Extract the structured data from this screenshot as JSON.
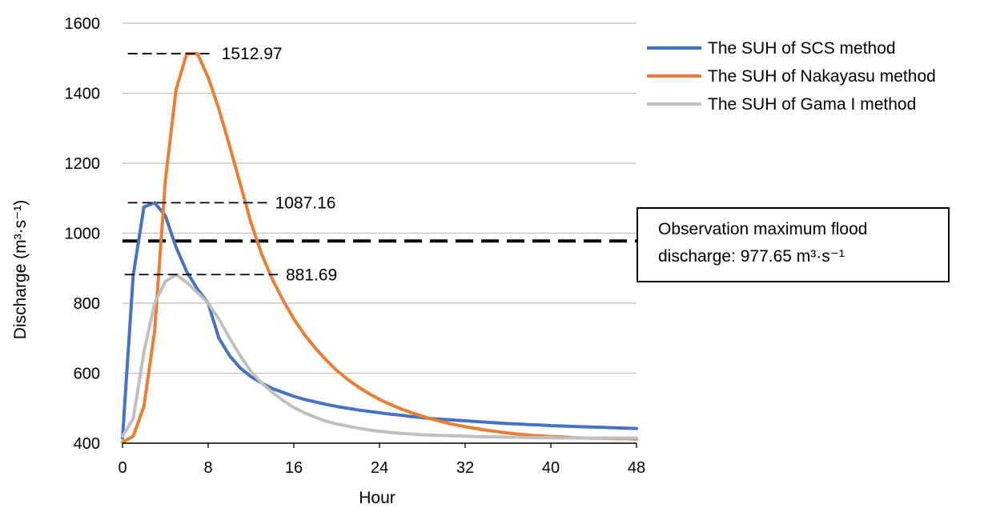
{
  "chart_data": {
    "type": "line",
    "xlabel": "Hour",
    "ylabel": "Discharge (m³·s⁻¹)",
    "xlim": [
      0,
      48
    ],
    "ylim": [
      400,
      1600
    ],
    "xticks": [
      0,
      8,
      16,
      24,
      32,
      40,
      48
    ],
    "yticks": [
      400,
      600,
      800,
      1000,
      1200,
      1400,
      1600
    ],
    "grid": "horizontal",
    "legend_position": "right",
    "series": [
      {
        "name": "The SUH of SCS method",
        "color": "#4472C4",
        "x": [
          0,
          1,
          2,
          3,
          4,
          5,
          6,
          7,
          8,
          9,
          10,
          11,
          12,
          13,
          14,
          15,
          16,
          17,
          18,
          19,
          20,
          21,
          22,
          23,
          24,
          25,
          26,
          27,
          28,
          29,
          30,
          31,
          32,
          33,
          34,
          35,
          36,
          37,
          38,
          39,
          40,
          41,
          42,
          43,
          44,
          45,
          46,
          47,
          48
        ],
        "y": [
          415,
          880,
          1075,
          1087,
          1050,
          960,
          890,
          840,
          800,
          700,
          650,
          615,
          590,
          572,
          556,
          545,
          534,
          525,
          518,
          511,
          505,
          500,
          495,
          491,
          487,
          483,
          480,
          476,
          473,
          470,
          468,
          466,
          464,
          462,
          460,
          458,
          456,
          455,
          453,
          452,
          450,
          449,
          448,
          447,
          446,
          445,
          444,
          443,
          442
        ]
      },
      {
        "name": "The SUH of Nakayasu method",
        "color": "#ED7D31",
        "x": [
          0,
          1,
          2,
          3,
          4,
          5,
          6,
          7,
          8,
          9,
          10,
          11,
          12,
          13,
          14,
          15,
          16,
          17,
          18,
          19,
          20,
          21,
          22,
          23,
          24,
          25,
          26,
          27,
          28,
          29,
          30,
          31,
          32,
          33,
          34,
          35,
          36,
          37,
          38,
          39,
          40,
          41,
          42,
          43,
          44,
          45,
          46,
          47,
          48
        ],
        "y": [
          403,
          420,
          505,
          720,
          1150,
          1410,
          1512.97,
          1512.97,
          1445,
          1355,
          1250,
          1140,
          1030,
          940,
          868,
          808,
          755,
          710,
          672,
          638,
          608,
          583,
          561,
          542,
          525,
          511,
          498,
          487,
          477,
          468,
          460,
          453,
          447,
          442,
          437,
          433,
          429,
          426,
          423,
          421,
          419,
          418,
          416,
          415,
          414,
          414,
          413,
          413,
          412
        ]
      },
      {
        "name": "The SUH of Gama I method",
        "color": "#C0C0C0",
        "x": [
          0,
          1,
          2,
          3,
          4,
          5,
          6,
          7,
          8,
          9,
          10,
          11,
          12,
          13,
          14,
          15,
          16,
          17,
          18,
          19,
          20,
          21,
          22,
          23,
          24,
          25,
          26,
          27,
          28,
          29,
          30,
          31,
          32,
          33,
          34,
          35,
          36,
          37,
          38,
          39,
          40,
          41,
          42,
          43,
          44,
          45,
          46,
          47,
          48
        ],
        "y": [
          420,
          470,
          660,
          800,
          862,
          881.69,
          860,
          830,
          800,
          755,
          700,
          650,
          605,
          572,
          545,
          522,
          502,
          487,
          474,
          463,
          455,
          449,
          443,
          438,
          434,
          431,
          428,
          426,
          424,
          423,
          422,
          421,
          420,
          419,
          418,
          418,
          417,
          417,
          416,
          416,
          416,
          415,
          415,
          415,
          415,
          415,
          415,
          415,
          415
        ]
      }
    ],
    "reference_line": {
      "y": 977.65,
      "style": "thick-dashed",
      "color": "#000000"
    },
    "peak_markers": [
      {
        "label": "1512.97",
        "y": 1512.97,
        "x_start": 0.5,
        "x_end": 8.5
      },
      {
        "label": "1087.16",
        "y": 1087.16,
        "x_start": 0.5,
        "x_end": 13.5
      },
      {
        "label": "881.69",
        "y": 881.69,
        "x_start": 0.2,
        "x_end": 14.5
      }
    ],
    "annotation_box": {
      "line1": "Observation maximum flood",
      "line2": "discharge: 977.65 m³·s⁻¹"
    }
  }
}
